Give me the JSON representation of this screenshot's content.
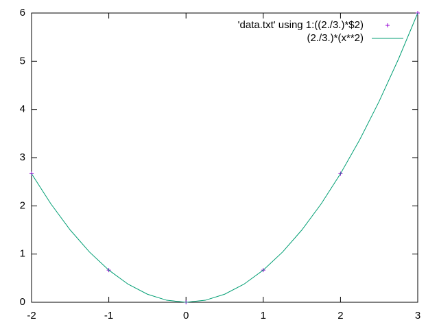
{
  "chart_data": {
    "type": "line",
    "xlim": [
      -2,
      3
    ],
    "ylim": [
      0,
      6
    ],
    "xticks": [
      -2,
      -1,
      0,
      1,
      2,
      3
    ],
    "yticks": [
      0,
      1,
      2,
      3,
      4,
      5,
      6
    ],
    "grid": false,
    "legend": "top-right",
    "series": [
      {
        "name": "'data.txt' using 1:((2./3.)*$2)",
        "style": "points",
        "color": "#9400d3",
        "x": [
          -2,
          -1,
          0,
          1,
          2,
          3
        ],
        "values": [
          2.667,
          0.667,
          0,
          0.667,
          2.667,
          6
        ]
      },
      {
        "name": "(2./3.)*(x**2)",
        "style": "lines",
        "color": "#009e73",
        "x": [
          -2,
          -1.75,
          -1.5,
          -1.25,
          -1,
          -0.75,
          -0.5,
          -0.25,
          0,
          0.25,
          0.5,
          0.75,
          1,
          1.25,
          1.5,
          1.75,
          2,
          2.25,
          2.5,
          2.75,
          3
        ],
        "values": [
          2.667,
          2.042,
          1.5,
          1.042,
          0.667,
          0.375,
          0.167,
          0.042,
          0,
          0.042,
          0.167,
          0.375,
          0.667,
          1.042,
          1.5,
          2.042,
          2.667,
          3.375,
          4.167,
          5.042,
          6
        ]
      }
    ]
  }
}
